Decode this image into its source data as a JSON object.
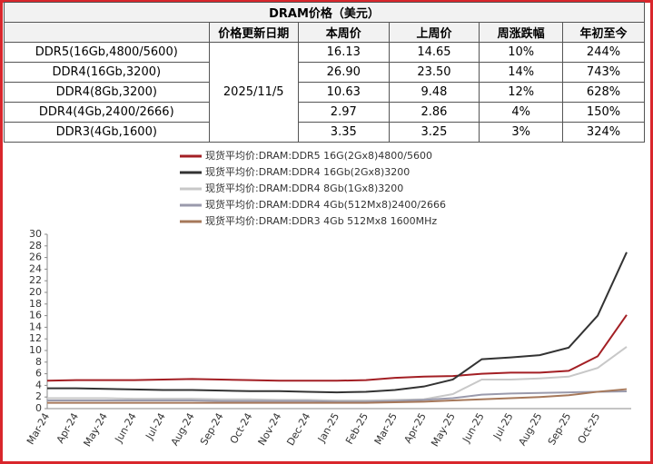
{
  "table": {
    "title": "DRAM价格（美元）",
    "headers": [
      "价格更新日期",
      "本周价",
      "上周价",
      "周涨跌幅",
      "年初至今"
    ],
    "date": "2025/11/5",
    "rows": [
      [
        "DDR5(16Gb,4800/5600)",
        "16.13",
        "14.65",
        "10%",
        "244%"
      ],
      [
        "DDR4(16Gb,3200)",
        "26.90",
        "23.50",
        "14%",
        "743%"
      ],
      [
        "DDR4(8Gb,3200)",
        "10.63",
        "9.48",
        "12%",
        "628%"
      ],
      [
        "DDR4(4Gb,2400/2666)",
        "2.97",
        "2.86",
        "4%",
        "150%"
      ],
      [
        "DDR3(4Gb,1600)",
        "3.35",
        "3.25",
        "3%",
        "324%"
      ]
    ]
  },
  "chart_data": {
    "type": "line",
    "categories": [
      "Mar-24",
      "Apr-24",
      "May-24",
      "Jun-24",
      "Jul-24",
      "Aug-24",
      "Sep-24",
      "Oct-24",
      "Nov-24",
      "Dec-24",
      "Jan-25",
      "Feb-25",
      "Mar-25",
      "Apr-25",
      "May-25",
      "Jun-25",
      "Jul-25",
      "Aug-25",
      "Sep-25",
      "Oct-25",
      null
    ],
    "series": [
      {
        "name": "现货平均价:DRAM:DDR5 16G(2Gx8)4800/5600",
        "color": "#a31f24",
        "values": [
          4.8,
          4.9,
          4.9,
          4.9,
          5.0,
          5.1,
          5.0,
          4.9,
          4.8,
          4.8,
          4.8,
          4.9,
          5.3,
          5.5,
          5.6,
          6.0,
          6.2,
          6.2,
          6.5,
          9.0,
          16.13
        ]
      },
      {
        "name": "现货平均价:DRAM:DDR4 16Gb(2Gx8)3200",
        "color": "#333333",
        "values": [
          3.5,
          3.5,
          3.4,
          3.3,
          3.2,
          3.2,
          3.1,
          3.0,
          3.0,
          2.9,
          2.8,
          2.9,
          3.2,
          3.8,
          5.0,
          8.5,
          8.8,
          9.2,
          10.5,
          16.0,
          26.9
        ]
      },
      {
        "name": "现货平均价:DRAM:DDR4 8Gb(1Gx8)3200",
        "color": "#c8c8c8",
        "values": [
          1.8,
          1.8,
          1.8,
          1.7,
          1.7,
          1.7,
          1.6,
          1.6,
          1.5,
          1.5,
          1.4,
          1.4,
          1.5,
          1.6,
          2.5,
          5.0,
          5.0,
          5.2,
          5.5,
          7.0,
          10.63
        ]
      },
      {
        "name": "现货平均价:DRAM:DDR4 4Gb(512Mx8)2400/2666",
        "color": "#9a9aac",
        "values": [
          1.4,
          1.4,
          1.4,
          1.4,
          1.4,
          1.4,
          1.3,
          1.3,
          1.3,
          1.3,
          1.2,
          1.2,
          1.3,
          1.5,
          1.8,
          2.4,
          2.6,
          2.7,
          2.8,
          2.9,
          2.97
        ]
      },
      {
        "name": "现货平均价:DRAM:DDR3 4Gb 512Mx8 1600MHz",
        "color": "#a6785a",
        "values": [
          1.0,
          1.0,
          1.0,
          1.0,
          1.0,
          1.0,
          1.0,
          1.0,
          1.0,
          1.0,
          1.0,
          1.0,
          1.1,
          1.2,
          1.4,
          1.6,
          1.8,
          2.0,
          2.3,
          2.9,
          3.35
        ]
      }
    ],
    "ylim": [
      0,
      30
    ],
    "yticks": [
      0,
      2,
      4,
      6,
      8,
      10,
      12,
      14,
      16,
      18,
      20,
      22,
      24,
      26,
      28,
      30
    ],
    "grid": false
  }
}
